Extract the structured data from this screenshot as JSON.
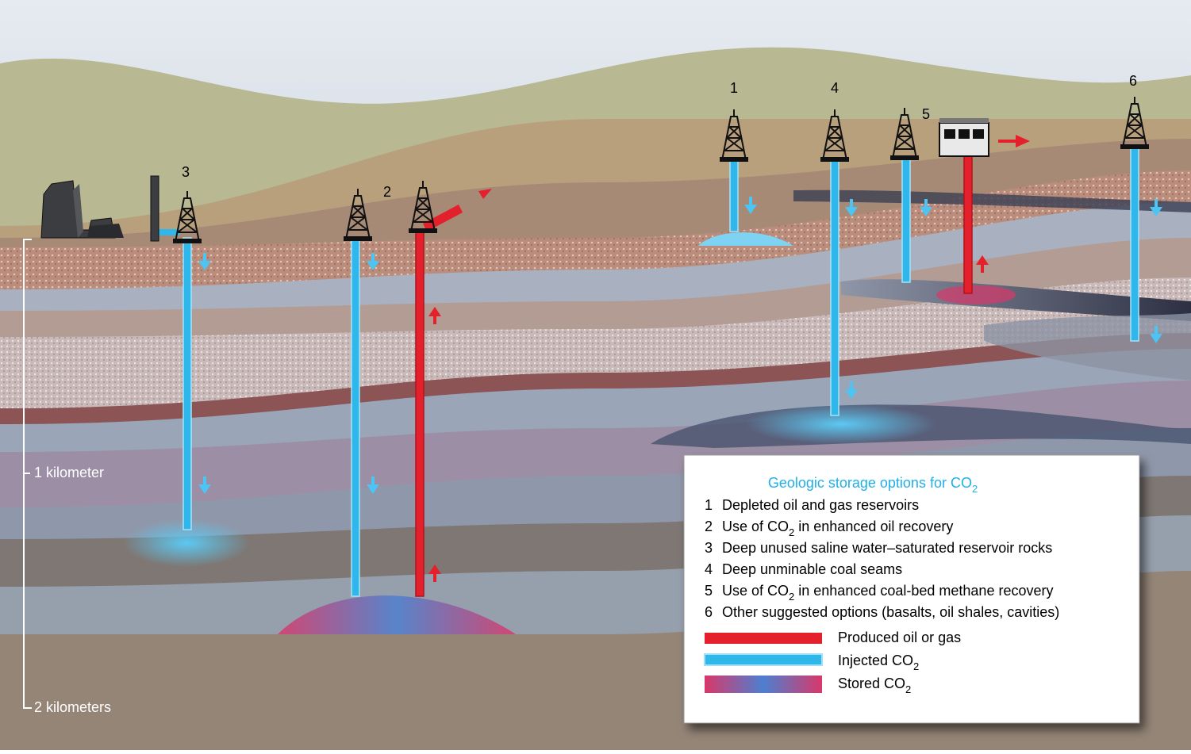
{
  "well_labels": [
    "1",
    "2",
    "3",
    "4",
    "5",
    "6"
  ],
  "scale": {
    "mid": "1 kilometer",
    "bottom": "2 kilometers"
  },
  "legend": {
    "title": [
      "Geologic storage options for CO",
      "2"
    ],
    "items": [
      {
        "number": "1",
        "text": [
          "Depleted oil and gas reservoirs"
        ]
      },
      {
        "number": "2",
        "text": [
          "Use of CO",
          "2",
          " in enhanced oil recovery"
        ]
      },
      {
        "number": "3",
        "text": [
          "Deep unused saline water–saturated reservoir rocks"
        ]
      },
      {
        "number": "4",
        "text": [
          "Deep unminable coal seams"
        ]
      },
      {
        "number": "5",
        "text": [
          "Use of CO",
          "2",
          " in enhanced coal-bed methane recovery"
        ]
      },
      {
        "number": "6",
        "text": [
          "Other suggested options (basalts, oil shales, cavities)"
        ]
      }
    ],
    "key": [
      {
        "label": [
          "Produced oil or gas"
        ]
      },
      {
        "label": [
          "Injected CO",
          "2"
        ]
      },
      {
        "label": [
          "Stored CO",
          "2"
        ]
      }
    ]
  }
}
